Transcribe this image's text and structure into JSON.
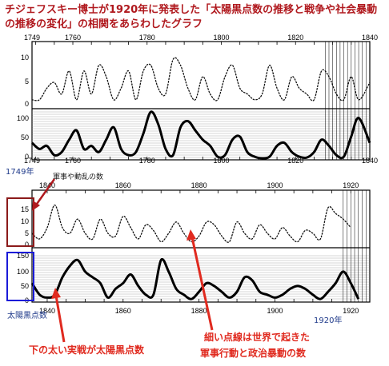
{
  "title": "チジェフスキー博士が1920年に発表した「太陽黒点数の推移と戦争や社会暴動の推移の変化」の相関をあらわしたグラフ",
  "annotations": {
    "year_1749": "1749年",
    "war_count": "軍事や動乱の数",
    "sunspot_count": "太陽黒点数",
    "year_1920": "1920年",
    "thick_line_note": "下の太い実戦が太陽黒点数",
    "dotted_line_note_1": "細い点線は世界で起きた",
    "dotted_line_note_2": "軍事行動と政治暴動の数"
  },
  "colors": {
    "title": "#b0191e",
    "annotation_red": "#e02a1f",
    "box_dark_red": "#8b1a1a",
    "box_blue": "#1a1ad8",
    "label_blue": "#1f3a8a"
  },
  "chart_data": [
    {
      "type": "line",
      "period": "upper",
      "x_ticks": [
        "1749",
        "1760",
        "1780",
        "1800",
        "1820",
        "1840"
      ],
      "war_axis_ticks": [
        "10",
        "5",
        "0"
      ],
      "sunspot_axis_ticks": [
        "100",
        "50",
        "0"
      ],
      "series": [
        {
          "style": "dotted",
          "x": [
            1749,
            1751,
            1753,
            1755,
            1757,
            1759,
            1761,
            1763,
            1765,
            1767,
            1769,
            1771,
            1773,
            1775,
            1777,
            1779,
            1781,
            1783,
            1785,
            1787,
            1789,
            1791,
            1793,
            1795,
            1797,
            1799,
            1801,
            1803,
            1805,
            1807,
            1809,
            1811,
            1813,
            1815,
            1817,
            1819,
            1821,
            1823,
            1825,
            1827,
            1829,
            1831,
            1833,
            1835,
            1837,
            1840
          ],
          "y": [
            1,
            1,
            3,
            4,
            2,
            6,
            1,
            6,
            2,
            7,
            5,
            1,
            3,
            6,
            1,
            6,
            7,
            3,
            2,
            8,
            7,
            3,
            1,
            5,
            2,
            1,
            5,
            7,
            3,
            2,
            1,
            2,
            7,
            3,
            1,
            5,
            3,
            2,
            1,
            6,
            5,
            2,
            1,
            5,
            1,
            4
          ]
        },
        {
          "style": "solid",
          "x": [
            1749,
            1751,
            1753,
            1755,
            1757,
            1759,
            1761,
            1763,
            1765,
            1767,
            1769,
            1771,
            1773,
            1775,
            1777,
            1779,
            1781,
            1783,
            1785,
            1787,
            1789,
            1791,
            1793,
            1795,
            1797,
            1799,
            1801,
            1803,
            1805,
            1807,
            1809,
            1811,
            1813,
            1815,
            1817,
            1819,
            1821,
            1823,
            1825,
            1827,
            1829,
            1831,
            1833,
            1835,
            1837,
            1840
          ],
          "y": [
            50,
            30,
            40,
            10,
            20,
            60,
            90,
            30,
            40,
            20,
            60,
            100,
            30,
            10,
            20,
            80,
            150,
            110,
            30,
            10,
            100,
            120,
            90,
            60,
            40,
            5,
            10,
            60,
            70,
            20,
            5,
            0,
            5,
            40,
            50,
            20,
            5,
            2,
            20,
            60,
            40,
            10,
            5,
            70,
            130,
            50
          ]
        }
      ]
    },
    {
      "type": "line",
      "period": "lower",
      "x_ticks": [
        "1840",
        "1860",
        "1880",
        "1900",
        "1920"
      ],
      "war_axis_ticks": [
        "15",
        "10",
        "5",
        "0"
      ],
      "sunspot_axis_ticks": [
        "150",
        "100",
        "50",
        "0"
      ],
      "series": [
        {
          "style": "dotted",
          "x": [
            1836,
            1838,
            1840,
            1842,
            1844,
            1846,
            1848,
            1850,
            1852,
            1854,
            1856,
            1858,
            1860,
            1862,
            1864,
            1866,
            1868,
            1870,
            1872,
            1874,
            1876,
            1878,
            1880,
            1882,
            1884,
            1886,
            1888,
            1890,
            1892,
            1894,
            1896,
            1898,
            1900,
            1902,
            1904,
            1906,
            1908,
            1910,
            1912,
            1914,
            1916,
            1918,
            1920
          ],
          "y": [
            4,
            2,
            6,
            14,
            6,
            4,
            9,
            4,
            2,
            9,
            4,
            3,
            10,
            6,
            2,
            7,
            5,
            1,
            4,
            8,
            4,
            1,
            3,
            8,
            7,
            3,
            1,
            8,
            4,
            2,
            7,
            4,
            2,
            6,
            3,
            1,
            5,
            4,
            2,
            13,
            11,
            9,
            6
          ]
        },
        {
          "style": "solid",
          "x": [
            1836,
            1838,
            1840,
            1842,
            1844,
            1846,
            1848,
            1850,
            1852,
            1854,
            1856,
            1858,
            1860,
            1862,
            1864,
            1866,
            1868,
            1870,
            1872,
            1874,
            1876,
            1878,
            1880,
            1882,
            1884,
            1886,
            1888,
            1890,
            1892,
            1894,
            1896,
            1898,
            1900,
            1902,
            1904,
            1906,
            1908,
            1910,
            1912,
            1914,
            1916,
            1918,
            1920,
            1922
          ],
          "y": [
            60,
            20,
            10,
            20,
            80,
            120,
            140,
            100,
            80,
            60,
            10,
            40,
            60,
            90,
            50,
            20,
            20,
            140,
            100,
            40,
            20,
            5,
            30,
            60,
            50,
            30,
            10,
            30,
            80,
            70,
            30,
            20,
            10,
            20,
            40,
            50,
            40,
            20,
            5,
            30,
            60,
            100,
            60,
            5
          ]
        }
      ]
    }
  ]
}
